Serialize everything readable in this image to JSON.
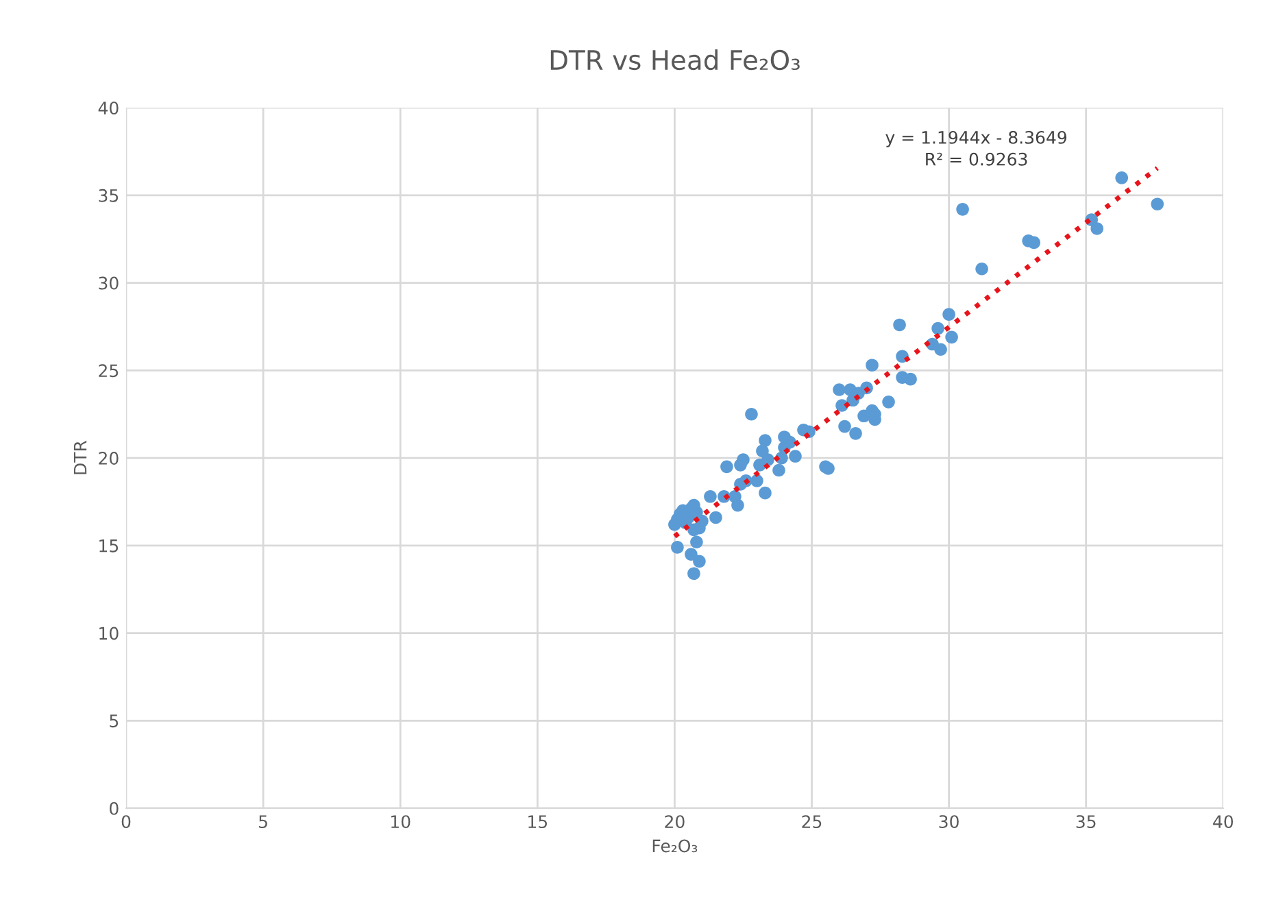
{
  "chart_data": {
    "type": "scatter",
    "title": "DTR vs Head Fe₂O₃",
    "xlabel": "Fe₂O₃",
    "ylabel": "DTR",
    "xlim": [
      0,
      40
    ],
    "ylim": [
      0,
      40
    ],
    "xticks": [
      0,
      5,
      10,
      15,
      20,
      25,
      30,
      35,
      40
    ],
    "yticks": [
      0,
      5,
      10,
      15,
      20,
      25,
      30,
      35,
      40
    ],
    "grid": true,
    "legend": false,
    "marker": "circle",
    "annotations": [
      "y = 1.1944x - 8.3649\nR² = 0.9263"
    ],
    "series": [
      {
        "color": "#5b9bd5",
        "x": [
          20.1,
          20.2,
          20.3,
          20.0,
          20.4,
          20.6,
          20.7,
          20.5,
          20.8,
          21.0,
          20.9,
          20.7,
          20.1,
          20.6,
          20.8,
          20.9,
          20.7,
          21.3,
          21.5,
          21.8,
          21.9,
          22.2,
          22.3,
          22.4,
          22.4,
          22.5,
          22.6,
          22.8,
          23.0,
          23.1,
          23.2,
          23.3,
          23.3,
          23.4,
          23.8,
          23.9,
          24.0,
          24.0,
          24.2,
          24.4,
          24.7,
          24.9,
          25.5,
          25.6,
          26.0,
          26.1,
          26.2,
          26.4,
          26.5,
          26.6,
          26.7,
          26.9,
          27.0,
          27.2,
          27.2,
          27.3,
          27.3,
          27.8,
          28.2,
          28.3,
          28.3,
          28.6,
          29.4,
          29.6,
          29.7,
          30.0,
          30.1,
          30.5,
          31.2,
          32.9,
          33.1,
          35.2,
          35.4,
          36.3,
          37.6
        ],
        "values": [
          16.5,
          16.8,
          17.0,
          16.2,
          16.3,
          17.1,
          17.3,
          16.6,
          16.9,
          16.4,
          16.0,
          15.9,
          14.9,
          14.5,
          15.2,
          14.1,
          13.4,
          17.8,
          16.6,
          17.8,
          19.5,
          17.8,
          17.3,
          18.5,
          19.6,
          19.9,
          18.7,
          22.5,
          18.7,
          19.6,
          20.4,
          21.0,
          18.0,
          19.9,
          19.3,
          20.0,
          20.6,
          21.2,
          20.9,
          20.1,
          21.6,
          21.5,
          19.5,
          19.4,
          23.9,
          23.0,
          21.8,
          23.9,
          23.3,
          21.4,
          23.7,
          22.4,
          24.0,
          22.7,
          25.3,
          22.2,
          22.5,
          23.2,
          27.6,
          25.8,
          24.6,
          24.5,
          26.5,
          27.4,
          26.2,
          28.2,
          26.9,
          34.2,
          30.8,
          32.4,
          32.3,
          33.6,
          33.1,
          36.0,
          34.5
        ]
      },
      {
        "type": "line",
        "color": "#e8141b",
        "line_style": "dotted",
        "marker": "none",
        "x": [
          20.0,
          37.6
        ],
        "values": [
          15.52,
          36.55
        ]
      }
    ]
  }
}
